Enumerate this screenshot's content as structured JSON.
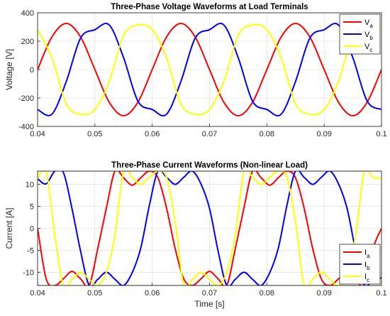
{
  "chart_data": [
    {
      "type": "line",
      "title": "Three-Phase Voltage Waveforms at Load Terminals",
      "xlabel": "",
      "ylabel": "Voltage [V]",
      "xlim": [
        0.04,
        0.1
      ],
      "ylim": [
        -400,
        400
      ],
      "xticks": [
        "0.04",
        "0.05",
        "0.06",
        "0.07",
        "0.08",
        "0.09",
        "0.1"
      ],
      "yticks": [
        "400",
        "200",
        "0",
        "-200",
        "-400"
      ],
      "grid": true,
      "legend_position": "top-right",
      "series": [
        {
          "name": "Va",
          "label_main": "V",
          "label_sub": "a",
          "color": "#ff0000",
          "x": [
            0.04,
            0.0425,
            0.045,
            0.0475,
            0.05,
            0.0525,
            0.055,
            0.0575,
            0.06,
            0.0625,
            0.065,
            0.0675,
            0.07,
            0.0725,
            0.075,
            0.0775,
            0.08,
            0.0825,
            0.085,
            0.0875,
            0.09,
            0.0925,
            0.095,
            0.0975,
            0.1
          ],
          "y": [
            0,
            230,
            325,
            230,
            0,
            -230,
            -325,
            -230,
            0,
            230,
            325,
            230,
            0,
            -230,
            -325,
            -230,
            0,
            230,
            325,
            230,
            0,
            -230,
            -325,
            -230,
            0
          ]
        },
        {
          "name": "Vb",
          "label_main": "V",
          "label_sub": "b",
          "color": "#0000ff",
          "x": [
            0.04,
            0.0425,
            0.045,
            0.0475,
            0.05,
            0.0525,
            0.055,
            0.0575,
            0.06,
            0.0625,
            0.065,
            0.0675,
            0.07,
            0.0725,
            0.075,
            0.0775,
            0.08,
            0.0825,
            0.085,
            0.0875,
            0.09,
            0.0925,
            0.095,
            0.0975,
            0.1
          ],
          "y": [
            -281,
            -314,
            -84,
            222,
            281,
            314,
            84,
            -222,
            -281,
            -314,
            -84,
            222,
            281,
            314,
            84,
            -222,
            -281,
            -314,
            -84,
            222,
            281,
            314,
            84,
            -222,
            -281
          ]
        },
        {
          "name": "Vc",
          "label_main": "V",
          "label_sub": "c",
          "color": "#ffff00",
          "x": [
            0.04,
            0.0425,
            0.045,
            0.0475,
            0.05,
            0.0525,
            0.055,
            0.0575,
            0.06,
            0.0625,
            0.065,
            0.0675,
            0.07,
            0.0725,
            0.075,
            0.0775,
            0.08,
            0.0825,
            0.085,
            0.0875,
            0.09,
            0.0925,
            0.095,
            0.0975,
            0.1
          ],
          "y": [
            281,
            84,
            -241,
            -314,
            -281,
            -84,
            241,
            314,
            281,
            84,
            -241,
            -314,
            -281,
            -84,
            241,
            314,
            281,
            84,
            -241,
            -314,
            -281,
            -84,
            241,
            314,
            281
          ]
        }
      ]
    },
    {
      "type": "line",
      "title": "Three-Phase Current Waveforms (Non-linear Load)",
      "xlabel": "Time [s]",
      "ylabel": "Current [A]",
      "xlim": [
        0.04,
        0.1
      ],
      "ylim": [
        -13,
        13
      ],
      "xticks": [
        "0.04",
        "0.05",
        "0.06",
        "0.07",
        "0.08",
        "0.09",
        "0.1"
      ],
      "yticks": [
        "10",
        "5",
        "0",
        "-5",
        "-10"
      ],
      "grid": true,
      "legend_position": "bottom-right",
      "series": [
        {
          "name": "Ia",
          "label_main": "I",
          "label_sub": "a",
          "color": "#ff0000",
          "x": [
            0.04,
            0.0415,
            0.043,
            0.0445,
            0.046,
            0.0475,
            0.049,
            0.0505,
            0.052,
            0.0535,
            0.055,
            0.0565,
            0.058,
            0.0595,
            0.061,
            0.0625,
            0.064,
            0.0655,
            0.067,
            0.0685,
            0.07,
            0.0715,
            0.073,
            0.0745,
            0.076,
            0.0775,
            0.079,
            0.0805,
            0.082,
            0.0835,
            0.085,
            0.0865,
            0.088,
            0.0895,
            0.091,
            0.0925,
            0.094,
            0.0955,
            0.097,
            0.0985,
            0.1
          ],
          "y": [
            0,
            -11.5,
            -13,
            -11.5,
            -9.8,
            -11.5,
            -13,
            -4.6,
            4.6,
            13,
            11.5,
            9.8,
            11.5,
            13,
            11.5,
            4.6,
            -4.6,
            -11.5,
            -13,
            -11.5,
            -9.8,
            -11.5,
            -13,
            -4.6,
            4.6,
            13,
            11.5,
            9.8,
            11.5,
            13,
            11.5,
            4.6,
            -4.6,
            -11.5,
            -13,
            -11.5,
            -9.8,
            -11.5,
            -13,
            -4.6,
            0
          ]
        },
        {
          "name": "Ib",
          "label_main": "I",
          "label_sub": "b",
          "color": "#0000ff",
          "x": [
            0.04,
            0.0415,
            0.043,
            0.0445,
            0.046,
            0.0475,
            0.049,
            0.0505,
            0.052,
            0.0535,
            0.055,
            0.0565,
            0.058,
            0.0595,
            0.061,
            0.0625,
            0.064,
            0.0655,
            0.067,
            0.0685,
            0.07,
            0.0715,
            0.073,
            0.0745,
            0.076,
            0.0775,
            0.079,
            0.0805,
            0.082,
            0.0835,
            0.085,
            0.0865,
            0.088,
            0.0895,
            0.091,
            0.0925,
            0.094,
            0.0955,
            0.097,
            0.0985,
            0.1
          ],
          "y": [
            11.3,
            10.1,
            13,
            12.7,
            4.5,
            -5.2,
            -13,
            -11.6,
            -10,
            -11.6,
            -13,
            -10.1,
            -4.5,
            5.2,
            13,
            11.6,
            10,
            11.6,
            13,
            10.1,
            4.5,
            -5.2,
            -13,
            -11.6,
            -10,
            -11.6,
            -13,
            -10.1,
            -4.5,
            5.2,
            13,
            11.6,
            10,
            11.6,
            13,
            10.1,
            4.5,
            -5.2,
            -13,
            -11.6,
            -11.3
          ]
        },
        {
          "name": "Ic",
          "label_main": "I",
          "label_sub": "c",
          "color": "#ffff00",
          "x": [
            0.04,
            0.0415,
            0.043,
            0.0445,
            0.046,
            0.0475,
            0.049,
            0.0505,
            0.052,
            0.0535,
            0.055,
            0.0565,
            0.058,
            0.0595,
            0.061,
            0.0625,
            0.064,
            0.0655,
            0.067,
            0.0685,
            0.07,
            0.0715,
            0.073,
            0.0745,
            0.076,
            0.0775,
            0.079,
            0.0805,
            0.082,
            0.0835,
            0.085,
            0.0865,
            0.088,
            0.0895,
            0.091,
            0.0925,
            0.094,
            0.0955,
            0.097,
            0.0985,
            0.1
          ],
          "y": [
            11.3,
            13,
            -1.5,
            -13,
            -11.6,
            -10,
            -11.6,
            -13,
            -10,
            -1.5,
            13,
            11.6,
            10,
            11.6,
            13,
            11.6,
            1.5,
            -13,
            -11.6,
            -10,
            -11.6,
            -13,
            -10,
            -1.5,
            13,
            11.6,
            10,
            11.6,
            13,
            11.6,
            1.5,
            -13,
            -11.6,
            -10,
            -11.6,
            -13,
            -10,
            -1.5,
            13,
            11.6,
            11.3
          ]
        }
      ]
    }
  ]
}
